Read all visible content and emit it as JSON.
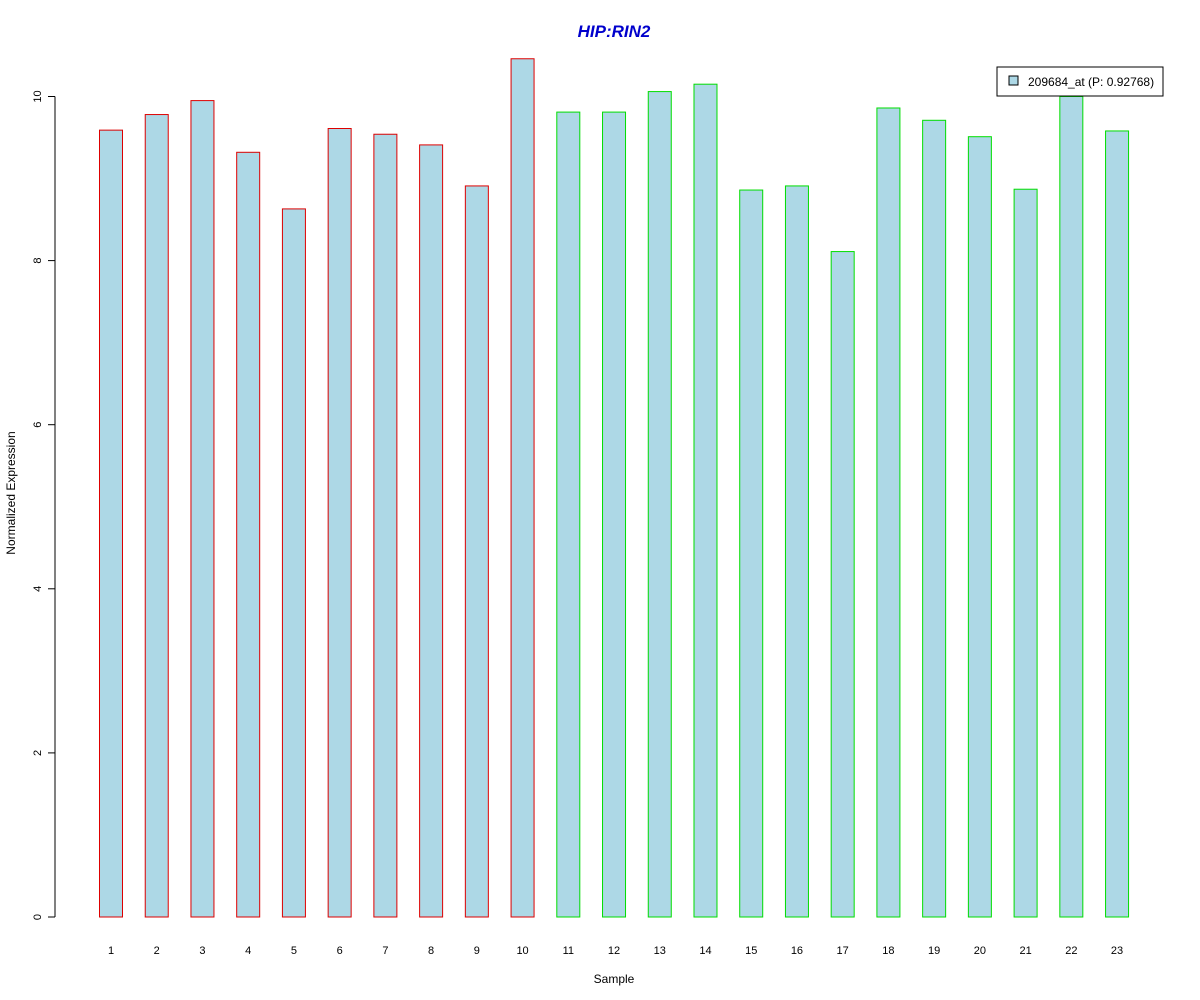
{
  "chart_data": {
    "type": "bar",
    "title": "HIP:RIN2",
    "xlabel": "Sample",
    "ylabel": "Normalized Expression",
    "categories": [
      "1",
      "2",
      "3",
      "4",
      "5",
      "6",
      "7",
      "8",
      "9",
      "10",
      "11",
      "12",
      "13",
      "14",
      "15",
      "16",
      "17",
      "18",
      "19",
      "20",
      "21",
      "22",
      "23"
    ],
    "series": [
      {
        "name": "209684_at (P: 0.92768)",
        "values": [
          9.59,
          9.78,
          9.95,
          9.32,
          8.63,
          9.61,
          9.54,
          9.41,
          8.91,
          10.46,
          9.81,
          9.81,
          10.06,
          10.15,
          8.86,
          8.91,
          8.11,
          9.86,
          9.71,
          9.51,
          8.87,
          10.0,
          9.58
        ]
      }
    ],
    "bar_border_colors": [
      "#dd0000",
      "#dd0000",
      "#dd0000",
      "#dd0000",
      "#dd0000",
      "#dd0000",
      "#dd0000",
      "#dd0000",
      "#dd0000",
      "#dd0000",
      "#00dd00",
      "#00dd00",
      "#00dd00",
      "#00dd00",
      "#00dd00",
      "#00dd00",
      "#00dd00",
      "#00dd00",
      "#00dd00",
      "#00dd00",
      "#00dd00",
      "#00dd00",
      "#00dd00"
    ],
    "bar_fill": "#add8e6",
    "title_color": "#0000cc",
    "yticks": [
      0,
      2,
      4,
      6,
      8,
      10
    ],
    "ytick_labels": [
      "0",
      "2",
      "4",
      "6",
      "8",
      "10"
    ],
    "ylim": [
      0,
      10.46
    ],
    "grid": false,
    "legend_position": "top-right"
  }
}
